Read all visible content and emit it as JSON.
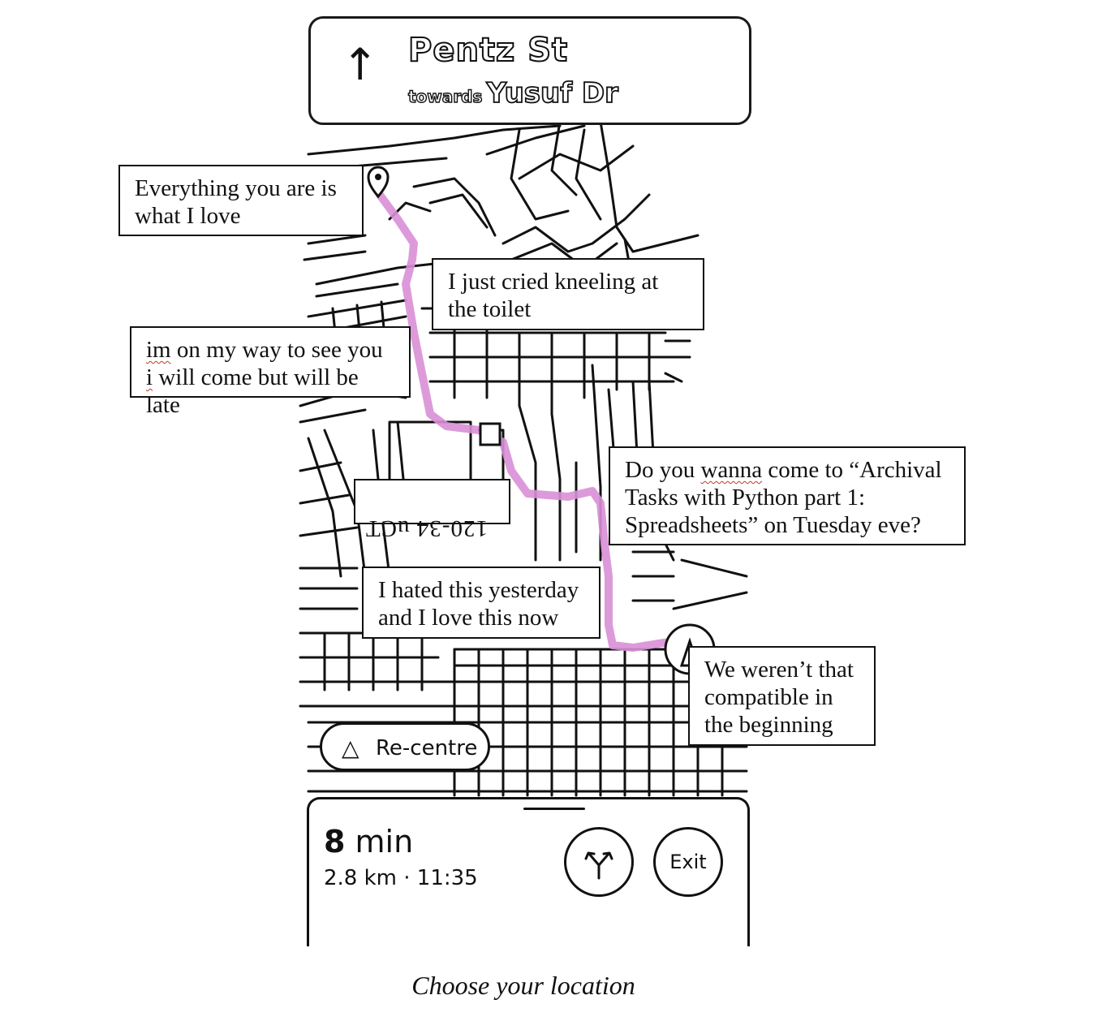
{
  "navigation": {
    "direction_icon": "arrow-up-icon",
    "street": "Pentz St",
    "towards_word": "towards",
    "towards_street": "Yusuf Dr"
  },
  "map": {
    "route_color": "#d98fd6",
    "destination_icon": "map-pin-icon",
    "mirrored_label": "120-34 uCT"
  },
  "messages": [
    {
      "text": "Everything you are is\nwhat I love"
    },
    {
      "text": "I just cried kneeling at\nthe toilet"
    },
    {
      "line1_a": "im",
      "line1_b": " on my way to see you",
      "line2_a": "i",
      "line2_b": " will come but will be late"
    },
    {
      "pre": "Do you ",
      "squiggle": "wanna",
      "post": " come to “Archival\nTasks with Python part 1:\nSpreadsheets” on Tuesday eve?"
    },
    {
      "text": "I hated this yesterday\nand I love this now"
    },
    {
      "text": "We weren’t that\ncompatible in\nthe beginning"
    }
  ],
  "recenter": {
    "icon": "navigation-triangle-icon",
    "label": "Re-centre"
  },
  "trip": {
    "minutes_num": "8",
    "minutes_unit": " min",
    "details": "2.8 km · 11:35",
    "routes_icon": "fork-arrows-icon",
    "exit_label": "Exit"
  },
  "caption": "Choose your location"
}
